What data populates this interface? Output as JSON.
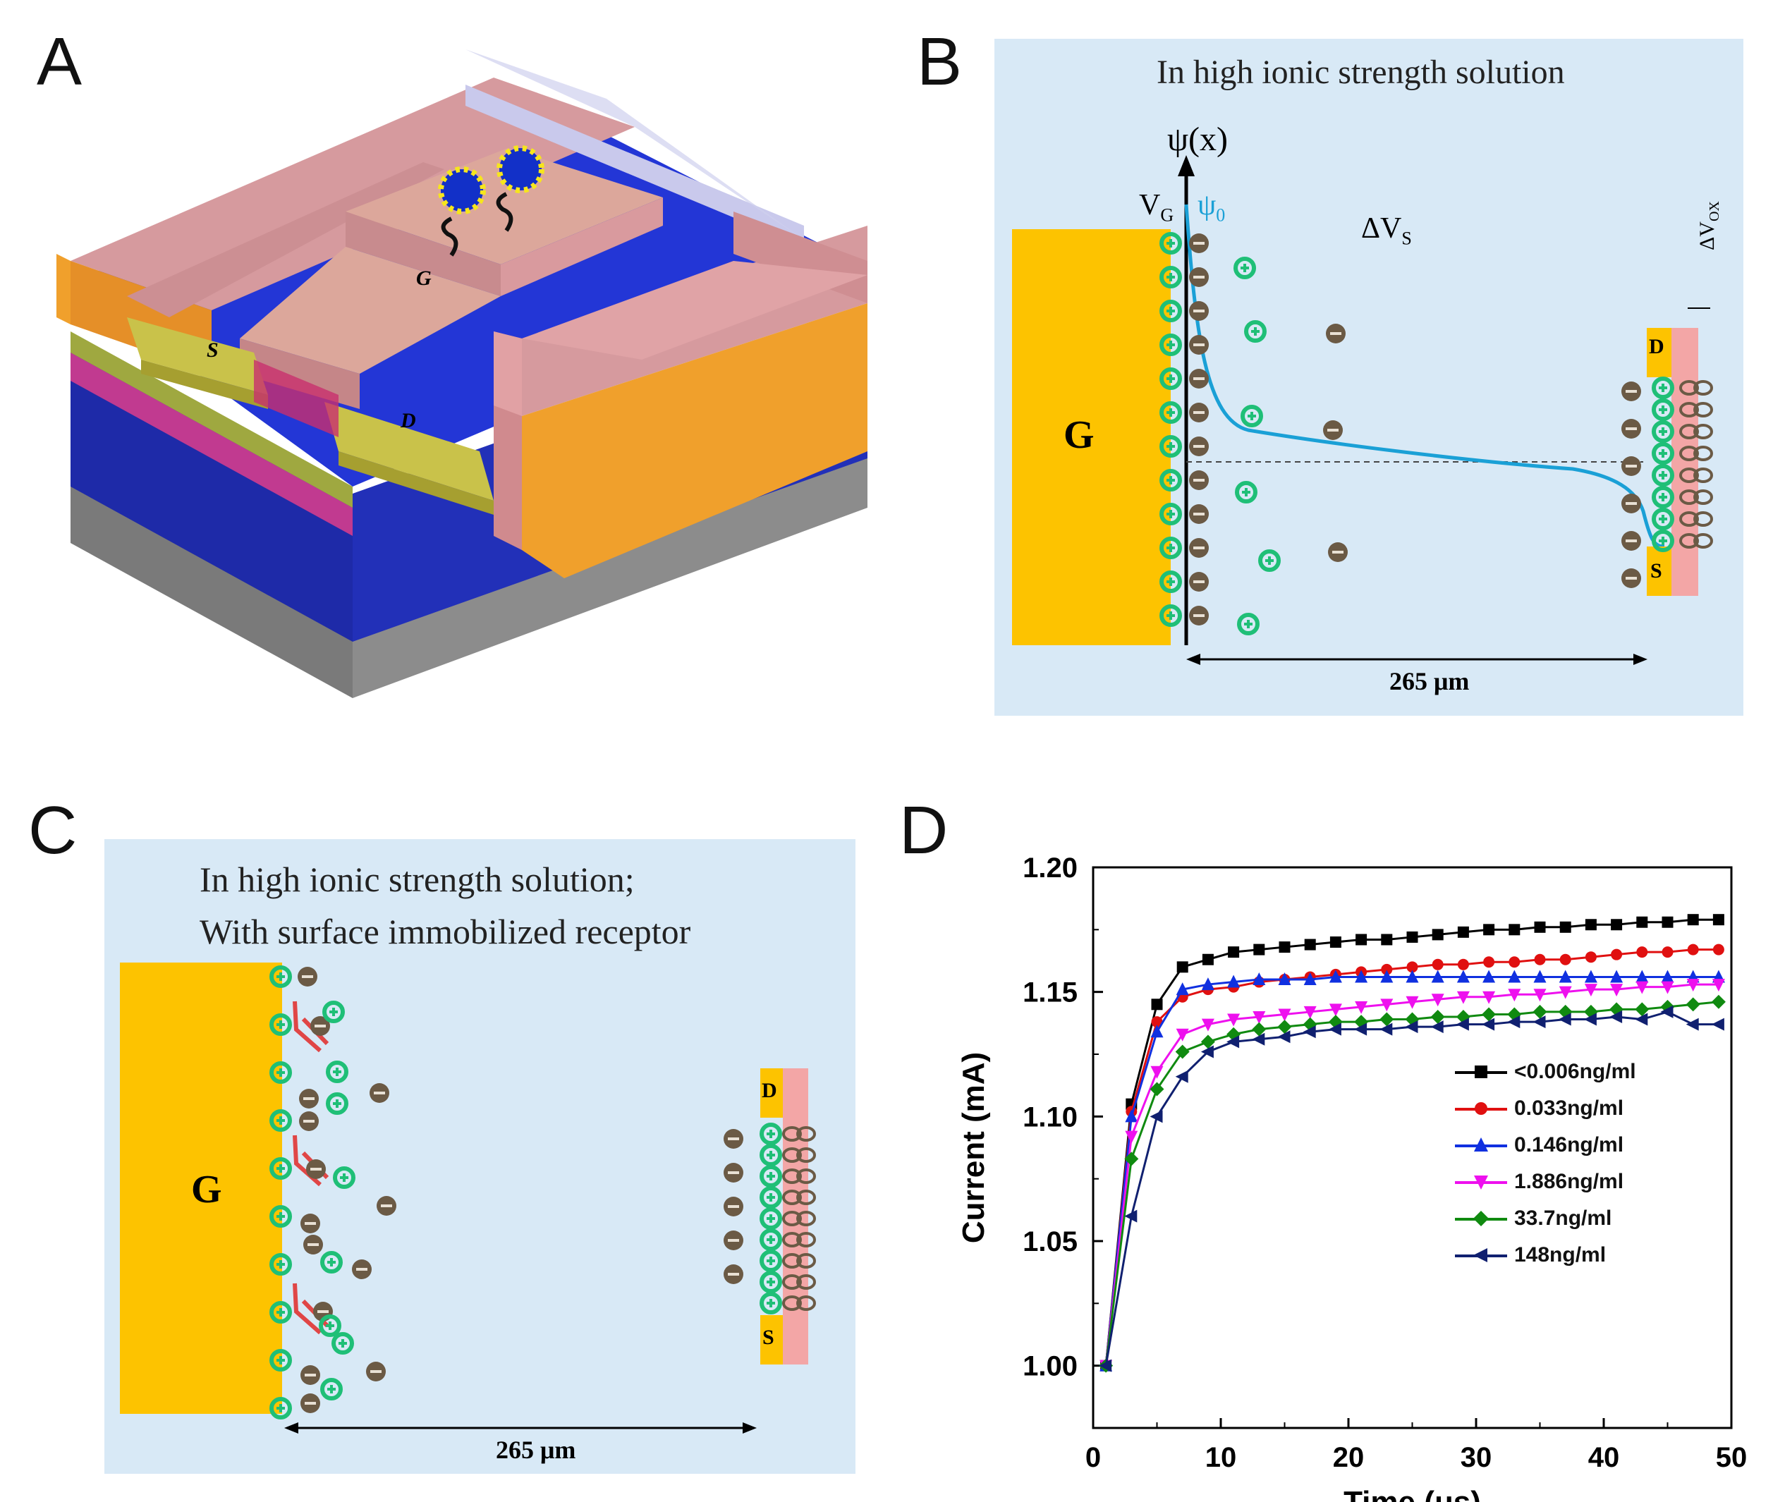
{
  "panels": {
    "a": {
      "label": "A",
      "gate_label": "G",
      "source_label": "S",
      "drain_label": "D"
    },
    "b": {
      "label": "B",
      "title": "In high ionic strength solution",
      "y_axis_label": "ψ(x)",
      "vg_label": "V",
      "vg_sub": "G",
      "psi0_label": "ψ",
      "psi0_sub": "0",
      "delta_vs_label": "ΔV",
      "delta_vs_sub": "S",
      "delta_vox_label": "ΔV",
      "delta_vox_sub": "OX",
      "gate_label": "G",
      "drain_label": "D",
      "source_label": "S",
      "distance_label": "265 μm"
    },
    "c": {
      "label": "C",
      "title_line1": "In high ionic strength solution;",
      "title_line2": "With surface immobilized receptor",
      "gate_label": "G",
      "drain_label": "D",
      "source_label": "S",
      "distance_label": "265 μm"
    },
    "d": {
      "label": "D"
    }
  },
  "colors": {
    "panel_bg": "#d8e9f6",
    "gate_gold": "#fdc300",
    "cation_green": "#1fbf77",
    "anion_brown": "#6b5a45",
    "potential_curve": "#1aa0d6",
    "oxide_pink": "#f3a6a6",
    "receptor_red": "#e04646"
  },
  "chart_data": {
    "type": "line",
    "xlabel": "Time (μs)",
    "ylabel": "Current (mA)",
    "xlim": [
      0,
      50
    ],
    "ylim": [
      0.975,
      1.2
    ],
    "xticks": [
      0,
      10,
      20,
      30,
      40,
      50
    ],
    "yticks": [
      1.0,
      1.05,
      1.1,
      1.15,
      1.2
    ],
    "xtick_labels": [
      "0",
      "10",
      "20",
      "30",
      "40",
      "50"
    ],
    "ytick_labels": [
      "1.00",
      "1.05",
      "1.10",
      "1.15",
      "1.20"
    ],
    "legend_position": "center-right",
    "series": [
      {
        "name": "<0.006ng/ml",
        "color": "#000000",
        "marker": "square",
        "x": [
          1,
          3,
          5,
          7,
          9,
          11,
          13,
          15,
          17,
          19,
          21,
          23,
          25,
          27,
          29,
          31,
          33,
          35,
          37,
          39,
          41,
          43,
          45,
          47,
          49
        ],
        "y": [
          1.0,
          1.105,
          1.145,
          1.16,
          1.163,
          1.166,
          1.167,
          1.168,
          1.169,
          1.17,
          1.171,
          1.171,
          1.172,
          1.173,
          1.174,
          1.175,
          1.175,
          1.176,
          1.176,
          1.177,
          1.177,
          1.178,
          1.178,
          1.179,
          1.179
        ]
      },
      {
        "name": "0.033ng/ml",
        "color": "#e01010",
        "marker": "circle",
        "x": [
          1,
          3,
          5,
          7,
          9,
          11,
          13,
          15,
          17,
          19,
          21,
          23,
          25,
          27,
          29,
          31,
          33,
          35,
          37,
          39,
          41,
          43,
          45,
          47,
          49
        ],
        "y": [
          1.0,
          1.102,
          1.138,
          1.148,
          1.151,
          1.152,
          1.154,
          1.155,
          1.156,
          1.157,
          1.158,
          1.159,
          1.16,
          1.161,
          1.161,
          1.162,
          1.162,
          1.163,
          1.163,
          1.164,
          1.165,
          1.166,
          1.166,
          1.167,
          1.167
        ]
      },
      {
        "name": "0.146ng/ml",
        "color": "#1030e0",
        "marker": "triangle-up",
        "x": [
          1,
          3,
          5,
          7,
          9,
          11,
          13,
          15,
          17,
          19,
          21,
          23,
          25,
          27,
          29,
          31,
          33,
          35,
          37,
          39,
          41,
          43,
          45,
          47,
          49
        ],
        "y": [
          1.0,
          1.1,
          1.134,
          1.151,
          1.153,
          1.154,
          1.155,
          1.155,
          1.155,
          1.156,
          1.156,
          1.156,
          1.156,
          1.156,
          1.156,
          1.156,
          1.156,
          1.156,
          1.156,
          1.156,
          1.156,
          1.156,
          1.156,
          1.156,
          1.156
        ]
      },
      {
        "name": "1.886ng/ml",
        "color": "#ee10ee",
        "marker": "triangle-down",
        "x": [
          1,
          3,
          5,
          7,
          9,
          11,
          13,
          15,
          17,
          19,
          21,
          23,
          25,
          27,
          29,
          31,
          33,
          35,
          37,
          39,
          41,
          43,
          45,
          47,
          49
        ],
        "y": [
          1.0,
          1.092,
          1.118,
          1.133,
          1.137,
          1.139,
          1.14,
          1.141,
          1.142,
          1.143,
          1.144,
          1.145,
          1.146,
          1.147,
          1.148,
          1.148,
          1.149,
          1.149,
          1.15,
          1.151,
          1.151,
          1.152,
          1.152,
          1.153,
          1.153
        ]
      },
      {
        "name": "33.7ng/ml",
        "color": "#108a10",
        "marker": "diamond",
        "x": [
          1,
          3,
          5,
          7,
          9,
          11,
          13,
          15,
          17,
          19,
          21,
          23,
          25,
          27,
          29,
          31,
          33,
          35,
          37,
          39,
          41,
          43,
          45,
          47,
          49
        ],
        "y": [
          1.0,
          1.083,
          1.111,
          1.126,
          1.13,
          1.133,
          1.135,
          1.136,
          1.137,
          1.138,
          1.138,
          1.139,
          1.139,
          1.14,
          1.14,
          1.141,
          1.141,
          1.142,
          1.142,
          1.142,
          1.143,
          1.143,
          1.144,
          1.145,
          1.146
        ]
      },
      {
        "name": "148ng/ml",
        "color": "#102070",
        "marker": "triangle-left",
        "x": [
          1,
          3,
          5,
          7,
          9,
          11,
          13,
          15,
          17,
          19,
          21,
          23,
          25,
          27,
          29,
          31,
          33,
          35,
          37,
          39,
          41,
          43,
          45,
          47,
          49
        ],
        "y": [
          1.0,
          1.06,
          1.1,
          1.116,
          1.126,
          1.13,
          1.131,
          1.132,
          1.134,
          1.135,
          1.135,
          1.135,
          1.136,
          1.136,
          1.137,
          1.137,
          1.138,
          1.138,
          1.139,
          1.139,
          1.14,
          1.139,
          1.142,
          1.137,
          1.137
        ]
      }
    ]
  }
}
